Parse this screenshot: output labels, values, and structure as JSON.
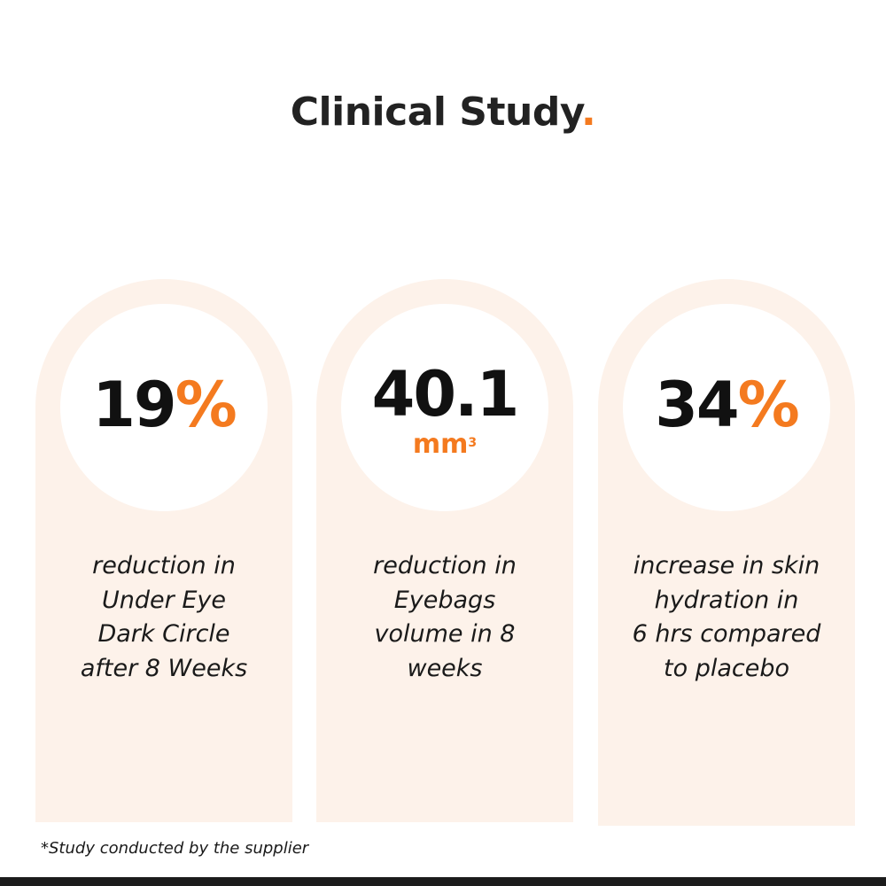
{
  "title": {
    "text": "Clinical Study",
    "dot": "."
  },
  "stats": [
    {
      "value": "19",
      "suffix": "%",
      "description_lines": [
        "reduction in",
        "Under Eye",
        "Dark Circle",
        "after 8 Weeks"
      ]
    },
    {
      "value": "40.1",
      "unit": "mm",
      "unit_sup": "3",
      "description_lines": [
        "reduction in",
        "Eyebags",
        "volume in 8",
        "weeks"
      ]
    },
    {
      "value": "34",
      "suffix": "%",
      "description_lines": [
        "increase in skin",
        "hydration in",
        "6 hrs compared",
        "to placebo"
      ]
    }
  ],
  "footnote": "*Study conducted by the supplier",
  "colors": {
    "accent": "#f47a1f",
    "card_background": "#fdf2ea",
    "text": "#111111",
    "bottom_bar": "#1c1c1c"
  }
}
